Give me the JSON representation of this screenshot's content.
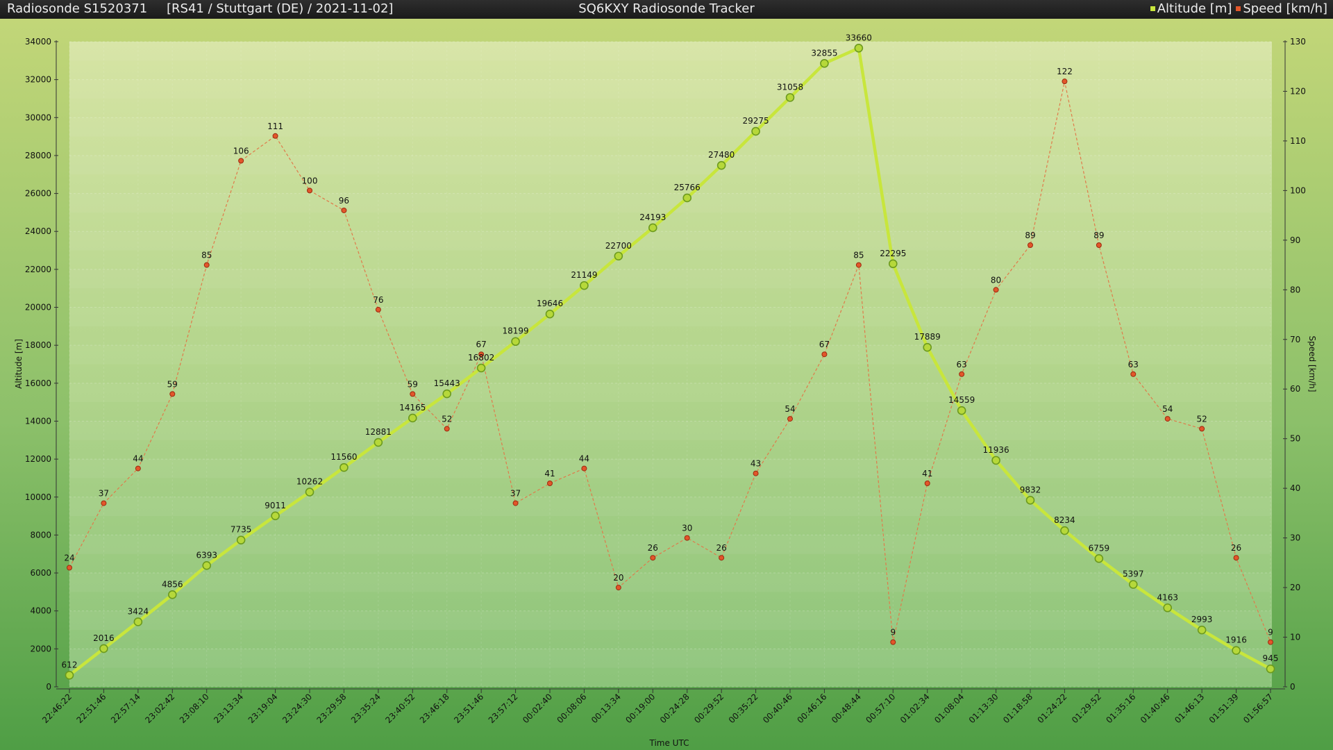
{
  "header": {
    "sonde_id": "Radiosonde S1520371",
    "sonde_info": "[RS41 / Stuttgart (DE) / 2021-11-02]",
    "app_title": "SQ6KXY Radiosonde Tracker",
    "legend": [
      {
        "label": "Altitude [m]",
        "color": "#c8e63c"
      },
      {
        "label": "Speed [km/h]",
        "color": "#e2562a"
      }
    ]
  },
  "chart_data": {
    "type": "line",
    "xlabel": "Time UTC",
    "ylabel": "Altitude [m]",
    "y2label": "Speed [km/h]",
    "ylim": [
      0,
      34000
    ],
    "y2lim": [
      0,
      130
    ],
    "y_ticks": [
      0,
      2000,
      4000,
      6000,
      8000,
      10000,
      12000,
      14000,
      16000,
      18000,
      20000,
      22000,
      24000,
      26000,
      28000,
      30000,
      32000,
      34000
    ],
    "y2_ticks": [
      0,
      10,
      20,
      30,
      40,
      50,
      60,
      70,
      80,
      90,
      100,
      110,
      120,
      130
    ],
    "x": [
      "22:46:22",
      "22:51:46",
      "22:57:14",
      "23:02:42",
      "23:08:10",
      "23:13:34",
      "23:19:04",
      "23:24:30",
      "23:29:58",
      "23:35:24",
      "23:40:52",
      "23:46:18",
      "23:51:46",
      "23:57:12",
      "00:02:40",
      "00:08:06",
      "00:13:34",
      "00:19:00",
      "00:24:28",
      "00:29:52",
      "00:35:22",
      "00:40:46",
      "00:46:16",
      "00:48:44",
      "00:57:10",
      "01:02:34",
      "01:08:04",
      "01:13:30",
      "01:18:58",
      "01:24:22",
      "01:29:52",
      "01:35:16",
      "01:40:46",
      "01:46:13",
      "01:51:39",
      "01:56:57"
    ],
    "series": [
      {
        "name": "Altitude [m]",
        "axis": "left",
        "color": "#c8e63c",
        "values": [
          612,
          2016,
          3424,
          4856,
          6393,
          7735,
          9011,
          10262,
          11560,
          12881,
          14165,
          15443,
          16802,
          18199,
          19646,
          21149,
          22700,
          24193,
          25766,
          27480,
          29275,
          31058,
          32855,
          33660,
          22295,
          17889,
          14559,
          11936,
          9832,
          8234,
          6759,
          5397,
          4163,
          2993,
          1916,
          945
        ]
      },
      {
        "name": "Speed [km/h]",
        "axis": "right",
        "color": "#e2562a",
        "values": [
          24,
          37,
          44,
          59,
          85,
          106,
          111,
          100,
          96,
          76,
          59,
          52,
          67,
          37,
          41,
          44,
          20,
          26,
          30,
          26,
          43,
          54,
          67,
          85,
          9,
          41,
          63,
          80,
          89,
          122,
          89,
          63,
          54,
          52,
          26,
          9
        ]
      }
    ]
  }
}
